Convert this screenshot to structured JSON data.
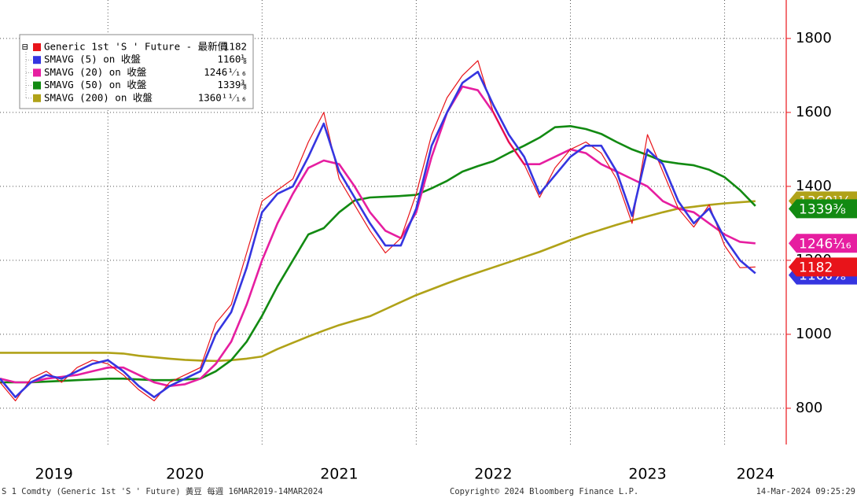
{
  "chart_data": {
    "type": "line",
    "x": [
      2019.3,
      2019.4,
      2019.5,
      2019.6,
      2019.7,
      2019.8,
      2019.9,
      2020.0,
      2020.1,
      2020.2,
      2020.3,
      2020.4,
      2020.5,
      2020.6,
      2020.7,
      2020.8,
      2020.9,
      2021.0,
      2021.1,
      2021.2,
      2021.3,
      2021.4,
      2021.5,
      2021.6,
      2021.7,
      2021.8,
      2021.9,
      2022.0,
      2022.1,
      2022.2,
      2022.3,
      2022.4,
      2022.5,
      2022.6,
      2022.7,
      2022.8,
      2022.9,
      2023.0,
      2023.1,
      2023.2,
      2023.3,
      2023.4,
      2023.5,
      2023.6,
      2023.7,
      2023.8,
      2023.9,
      2024.0,
      2024.1,
      2024.2
    ],
    "series": [
      {
        "name": "Generic 1st 'S ' Future - 最新價",
        "color": "#e8141a",
        "last": 1182,
        "last_label": "1182",
        "values": [
          870,
          820,
          880,
          900,
          870,
          910,
          930,
          920,
          890,
          850,
          820,
          870,
          890,
          910,
          1030,
          1080,
          1220,
          1360,
          1390,
          1420,
          1520,
          1600,
          1420,
          1350,
          1280,
          1220,
          1260,
          1380,
          1540,
          1640,
          1700,
          1740,
          1600,
          1520,
          1460,
          1370,
          1450,
          1500,
          1520,
          1490,
          1420,
          1300,
          1540,
          1440,
          1340,
          1290,
          1350,
          1240,
          1180,
          1182
        ]
      },
      {
        "name": "SMAVG (5)  on 收盤",
        "color": "#3535e0",
        "last": 1160.125,
        "last_label": "1160⅛",
        "values": [
          880,
          830,
          870,
          890,
          880,
          900,
          920,
          930,
          900,
          860,
          830,
          860,
          880,
          900,
          1000,
          1060,
          1180,
          1330,
          1380,
          1400,
          1480,
          1570,
          1440,
          1370,
          1300,
          1240,
          1240,
          1340,
          1510,
          1600,
          1680,
          1710,
          1620,
          1540,
          1480,
          1380,
          1430,
          1480,
          1510,
          1510,
          1440,
          1320,
          1500,
          1460,
          1360,
          1300,
          1340,
          1260,
          1200,
          1165
        ]
      },
      {
        "name": "SMAVG (20)  on 收盤",
        "color": "#e61ea0",
        "last": 1246.0625,
        "last_label": "1246¹⁄₁₆",
        "values": [
          880,
          870,
          870,
          880,
          885,
          890,
          900,
          910,
          910,
          890,
          870,
          860,
          865,
          880,
          920,
          980,
          1080,
          1200,
          1300,
          1380,
          1450,
          1470,
          1460,
          1400,
          1330,
          1280,
          1260,
          1330,
          1480,
          1600,
          1670,
          1660,
          1600,
          1520,
          1460,
          1460,
          1480,
          1500,
          1490,
          1460,
          1440,
          1420,
          1400,
          1360,
          1340,
          1330,
          1300,
          1270,
          1250,
          1246
        ]
      },
      {
        "name": "SMAVG (50)  on 收盤",
        "color": "#128a12",
        "last": 1339.375,
        "last_label": "1339⅜",
        "values": [
          870,
          870,
          870,
          872,
          874,
          876,
          878,
          880,
          880,
          878,
          876,
          876,
          878,
          880,
          900,
          930,
          980,
          1050,
          1130,
          1200,
          1270,
          1287,
          1330,
          1362,
          1370,
          1372,
          1374,
          1377,
          1395,
          1415,
          1440,
          1455,
          1468,
          1490,
          1510,
          1532,
          1560,
          1563,
          1555,
          1542,
          1520,
          1500,
          1485,
          1468,
          1462,
          1457,
          1445,
          1425,
          1390,
          1347
        ]
      },
      {
        "name": "SMAVG (200)  on 收盤",
        "color": "#b0a218",
        "last": 1360.6875,
        "last_label": "1360¹¹⁄₁₆",
        "values": [
          950,
          950,
          950,
          950,
          950,
          950,
          950,
          950,
          948,
          942,
          938,
          934,
          931,
          929,
          928,
          930,
          934,
          940,
          960,
          977,
          994,
          1010,
          1025,
          1037,
          1049,
          1068,
          1087,
          1106,
          1122,
          1138,
          1153,
          1167,
          1181,
          1195,
          1209,
          1223,
          1239,
          1255,
          1270,
          1283,
          1296,
          1308,
          1319,
          1330,
          1340,
          1345,
          1350,
          1354,
          1357,
          1360
        ]
      }
    ],
    "xlim": [
      2019.3,
      2024.4
    ],
    "xticks": [
      {
        "value": 2019.65,
        "label": "2019"
      },
      {
        "value": 2020.5,
        "label": "2020"
      },
      {
        "value": 2021.5,
        "label": "2021"
      },
      {
        "value": 2022.5,
        "label": "2022"
      },
      {
        "value": 2023.5,
        "label": "2023"
      },
      {
        "value": 2024.2,
        "label": "2024"
      }
    ],
    "xgrid": [
      2020,
      2021,
      2022,
      2023,
      2024
    ],
    "ylim": [
      702,
      1904
    ],
    "yticks": [
      800,
      1000,
      1200,
      1400,
      1600,
      1800
    ],
    "grid": true,
    "footer_left": "S 1 Comdty (Generic 1st 'S ' Future) 黃豆  每週 16MAR2019-14MAR2024",
    "footer_center": "Copyright© 2024 Bloomberg Finance L.P.",
    "footer_right": "14-Mar-2024 09:25:29"
  }
}
